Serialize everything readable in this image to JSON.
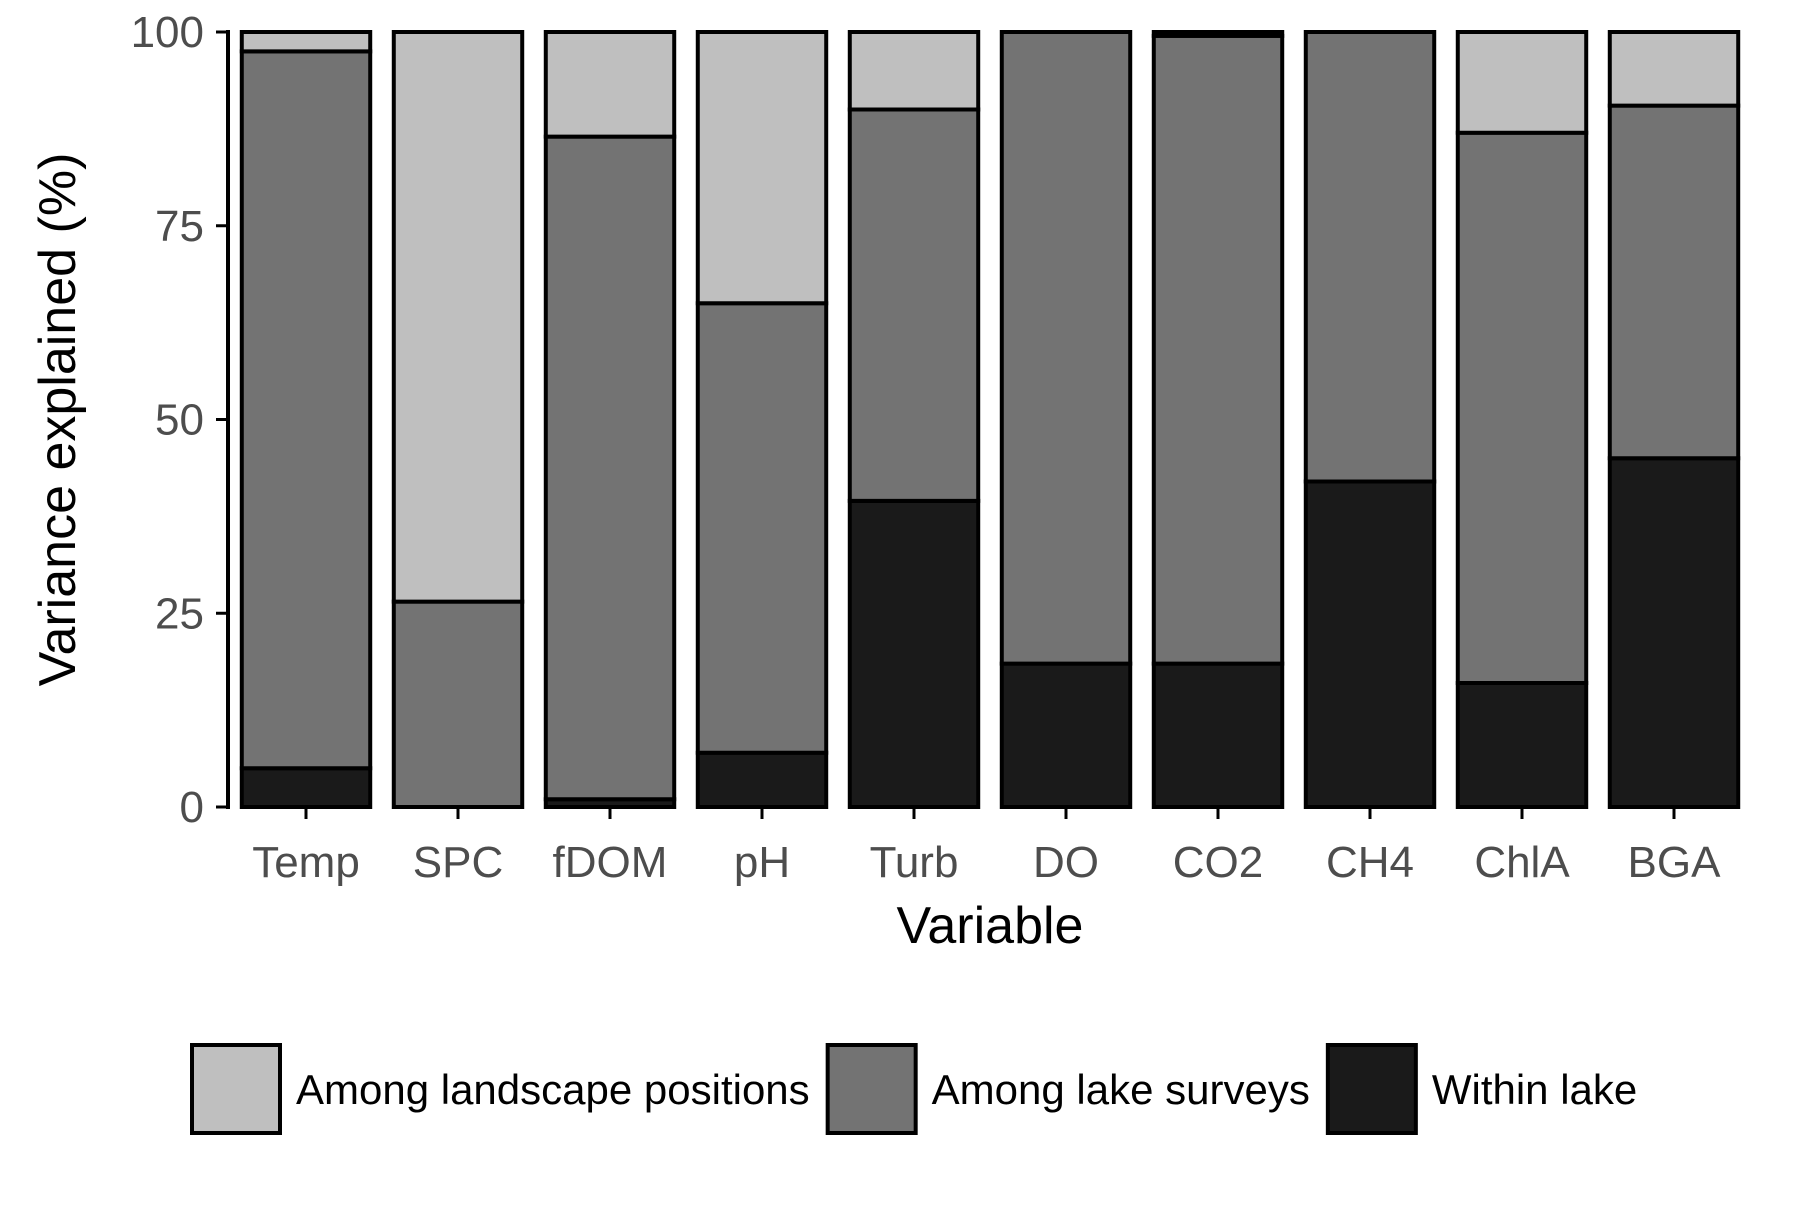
{
  "chart_data": {
    "type": "bar",
    "stacked": true,
    "xlabel": "Variable",
    "ylabel": "Variance explained (%)",
    "ylim": [
      0,
      100
    ],
    "yticks": [
      0,
      25,
      50,
      75,
      100
    ],
    "grid": false,
    "legend_position": "bottom",
    "categories": [
      "Temp",
      "SPC",
      "fDOM",
      "pH",
      "Turb",
      "DO",
      "CO2",
      "CH4",
      "ChlA",
      "BGA"
    ],
    "series": [
      {
        "name": "Within lake",
        "color": "#1a1a1a",
        "values": [
          5,
          0,
          1,
          7,
          39.5,
          18.5,
          18.5,
          42,
          16,
          45
        ]
      },
      {
        "name": "Among lake surveys",
        "color": "#737373",
        "values": [
          92.5,
          26.5,
          85.5,
          58,
          50.5,
          81.5,
          81,
          58,
          71,
          45.5
        ]
      },
      {
        "name": "Among landscape positions",
        "color": "#bfbfbf",
        "values": [
          2.5,
          73.5,
          13.5,
          35,
          10,
          0,
          0.5,
          0,
          13,
          9.5
        ]
      }
    ],
    "legend_order": [
      "Among landscape positions",
      "Among lake surveys",
      "Within lake"
    ]
  }
}
